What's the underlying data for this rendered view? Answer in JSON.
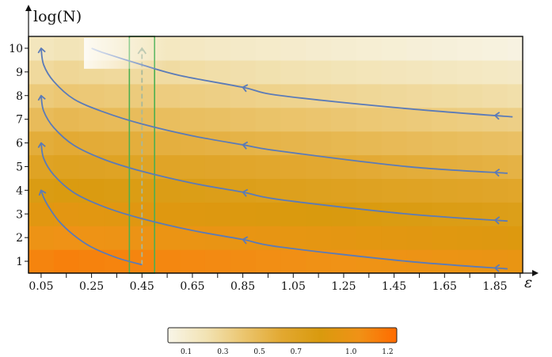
{
  "chart_data": {
    "type": "heatmap",
    "ylabel": "log(N)",
    "xlabel": "ε",
    "x_ticks": [
      "0.05",
      "0.25",
      "0.45",
      "0.65",
      "0.85",
      "1.05",
      "1.25",
      "1.45",
      "1.65",
      "1.85"
    ],
    "x_tick_values": [
      0.05,
      0.25,
      0.45,
      0.65,
      0.85,
      1.05,
      1.25,
      1.45,
      1.65,
      1.85
    ],
    "y_ticks": [
      "1",
      "2",
      "3",
      "4",
      "5",
      "6",
      "7",
      "8",
      "9",
      "10"
    ],
    "y_tick_values": [
      1,
      2,
      3,
      4,
      5,
      6,
      7,
      8,
      9,
      10
    ],
    "xlim": [
      0.0,
      1.96
    ],
    "ylim": [
      0.5,
      10.5
    ],
    "x_cells": [
      0.05,
      0.15,
      0.25,
      0.35,
      0.45,
      0.55,
      0.65,
      0.75,
      0.85,
      0.95,
      1.05,
      1.15,
      1.25,
      1.35,
      1.45,
      1.55,
      1.65,
      1.75,
      1.85,
      1.95
    ],
    "y_cells": [
      1,
      2,
      3,
      4,
      5,
      6,
      7,
      8,
      9,
      10
    ],
    "colorbar": {
      "ticks": [
        "0.1",
        "0.3",
        "0.5",
        "0.7",
        "1.0",
        "1.2"
      ],
      "tick_values": [
        0.1,
        0.3,
        0.5,
        0.7,
        1.0,
        1.2
      ],
      "range": [
        0.0,
        1.25
      ],
      "colors": [
        "#f8f5e8",
        "#f2e3b4",
        "#ebc56e",
        "#e2a830",
        "#d99a0e",
        "#f09216",
        "#ff6b00"
      ]
    },
    "highlight_band": {
      "x_range": [
        0.4,
        0.5
      ],
      "color": "#4caf50"
    },
    "dashed_arrow": {
      "x": 0.45,
      "y_from": 0.85,
      "y_to": 10.0
    },
    "curves": [
      {
        "name": "",
        "points": [
          [
            1.92,
            7.1
          ],
          [
            1.5,
            7.45
          ],
          [
            1.0,
            8.0
          ],
          [
            0.85,
            8.35
          ],
          [
            0.6,
            8.85
          ],
          [
            0.45,
            9.3
          ],
          [
            0.3,
            9.8
          ],
          [
            0.25,
            10.0
          ]
        ],
        "arrows_at": [
          1.85,
          0.85
        ]
      },
      {
        "name": "",
        "points": [
          [
            1.9,
            4.72
          ],
          [
            1.5,
            5.0
          ],
          [
            1.0,
            5.65
          ],
          [
            0.85,
            5.92
          ],
          [
            0.65,
            6.3
          ],
          [
            0.45,
            6.8
          ],
          [
            0.3,
            7.3
          ],
          [
            0.18,
            7.85
          ],
          [
            0.1,
            8.6
          ],
          [
            0.06,
            9.3
          ],
          [
            0.05,
            10.0
          ]
        ],
        "arrows_at": [
          1.85,
          0.85
        ],
        "end_arrow": true
      },
      {
        "name": "",
        "points": [
          [
            1.9,
            2.7
          ],
          [
            1.5,
            3.0
          ],
          [
            1.0,
            3.6
          ],
          [
            0.85,
            3.92
          ],
          [
            0.65,
            4.3
          ],
          [
            0.45,
            4.8
          ],
          [
            0.3,
            5.3
          ],
          [
            0.18,
            5.9
          ],
          [
            0.1,
            6.65
          ],
          [
            0.06,
            7.35
          ],
          [
            0.05,
            8.0
          ]
        ],
        "arrows_at": [
          1.85,
          0.85
        ],
        "end_arrow": true
      },
      {
        "name": "",
        "points": [
          [
            1.9,
            0.68
          ],
          [
            1.5,
            1.0
          ],
          [
            1.0,
            1.6
          ],
          [
            0.85,
            1.92
          ],
          [
            0.65,
            2.3
          ],
          [
            0.45,
            2.8
          ],
          [
            0.3,
            3.3
          ],
          [
            0.18,
            3.9
          ],
          [
            0.1,
            4.65
          ],
          [
            0.06,
            5.35
          ],
          [
            0.05,
            6.0
          ]
        ],
        "arrows_at": [
          1.85,
          0.85
        ],
        "end_arrow": true
      },
      {
        "name": "",
        "points": [
          [
            0.45,
            0.85
          ],
          [
            0.35,
            1.15
          ],
          [
            0.25,
            1.6
          ],
          [
            0.18,
            2.1
          ],
          [
            0.12,
            2.7
          ],
          [
            0.08,
            3.3
          ],
          [
            0.06,
            3.7
          ],
          [
            0.05,
            4.0
          ]
        ],
        "arrows_at": [],
        "end_arrow": true
      }
    ]
  }
}
